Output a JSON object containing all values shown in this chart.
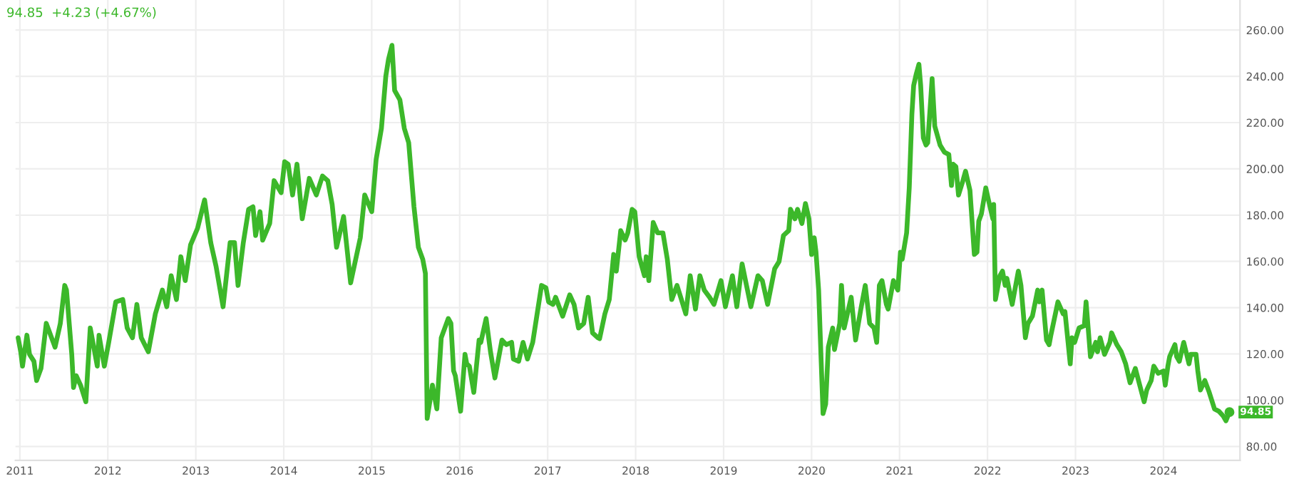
{
  "chart_data": {
    "type": "line",
    "x": [
      2010.98,
      2011.01,
      2011.03,
      2011.08,
      2011.11,
      2011.16,
      2011.19,
      2011.24,
      2011.3,
      2011.38,
      2011.4,
      2011.46,
      2011.51,
      2011.53,
      2011.59,
      2011.61,
      2011.64,
      2011.69,
      2011.75,
      2011.8,
      2011.88,
      2011.9,
      2011.96,
      2012.01,
      2012.09,
      2012.17,
      2012.22,
      2012.28,
      2012.33,
      2012.38,
      2012.46,
      2012.54,
      2012.62,
      2012.67,
      2012.72,
      2012.78,
      2012.83,
      2012.88,
      2012.94,
      2013.02,
      2013.1,
      2013.17,
      2013.23,
      2013.31,
      2013.39,
      2013.44,
      2013.48,
      2013.54,
      2013.6,
      2013.65,
      2013.68,
      2013.73,
      2013.76,
      2013.84,
      2013.89,
      2013.97,
      2014.01,
      2014.05,
      2014.1,
      2014.15,
      2014.21,
      2014.29,
      2014.37,
      2014.44,
      2014.5,
      2014.55,
      2014.6,
      2014.68,
      2014.76,
      2014.87,
      2014.92,
      2015.0,
      2015.05,
      2015.11,
      2015.16,
      2015.19,
      2015.23,
      2015.26,
      2015.32,
      2015.37,
      2015.42,
      2015.48,
      2015.53,
      2015.58,
      2015.61,
      2015.63,
      2015.69,
      2015.74,
      2015.79,
      2015.87,
      2015.9,
      2015.93,
      2015.95,
      2016.01,
      2016.06,
      2016.08,
      2016.11,
      2016.16,
      2016.22,
      2016.24,
      2016.3,
      2016.35,
      2016.4,
      2016.48,
      2016.53,
      2016.59,
      2016.61,
      2016.67,
      2016.72,
      2016.77,
      2016.83,
      2016.88,
      2016.93,
      2016.98,
      2017.01,
      2017.06,
      2017.09,
      2017.17,
      2017.25,
      2017.3,
      2017.35,
      2017.41,
      2017.46,
      2017.51,
      2017.57,
      2017.59,
      2017.65,
      2017.7,
      2017.75,
      2017.78,
      2017.83,
      2017.88,
      2017.91,
      2017.96,
      2017.99,
      2018.04,
      2018.1,
      2018.12,
      2018.15,
      2018.2,
      2018.25,
      2018.31,
      2018.36,
      2018.41,
      2018.47,
      2018.52,
      2018.57,
      2018.62,
      2018.68,
      2018.73,
      2018.78,
      2018.84,
      2018.89,
      2018.97,
      2019.02,
      2019.1,
      2019.15,
      2019.21,
      2019.26,
      2019.31,
      2019.39,
      2019.44,
      2019.5,
      2019.58,
      2019.63,
      2019.68,
      2019.74,
      2019.76,
      2019.81,
      2019.84,
      2019.89,
      2019.93,
      2019.97,
      2020.0,
      2020.03,
      2020.05,
      2020.08,
      2020.13,
      2020.16,
      2020.19,
      2020.24,
      2020.26,
      2020.32,
      2020.34,
      2020.37,
      2020.45,
      2020.5,
      2020.56,
      2020.61,
      2020.66,
      2020.71,
      2020.74,
      2020.77,
      2020.8,
      2020.85,
      2020.87,
      2020.93,
      2020.98,
      2021.01,
      2021.03,
      2021.08,
      2021.11,
      2021.14,
      2021.16,
      2021.19,
      2021.22,
      2021.24,
      2021.27,
      2021.3,
      2021.32,
      2021.35,
      2021.37,
      2021.4,
      2021.46,
      2021.51,
      2021.56,
      2021.59,
      2021.61,
      2021.64,
      2021.67,
      2021.72,
      2021.75,
      2021.8,
      2021.85,
      2021.88,
      2021.9,
      2021.93,
      2021.98,
      2022.01,
      2022.06,
      2022.07,
      2022.09,
      2022.14,
      2022.17,
      2022.2,
      2022.22,
      2022.28,
      2022.3,
      2022.35,
      2022.38,
      2022.43,
      2022.46,
      2022.51,
      2022.57,
      2022.59,
      2022.62,
      2022.67,
      2022.7,
      2022.72,
      2022.8,
      2022.86,
      2022.88,
      2022.94,
      2022.96,
      2022.99,
      2023.04,
      2023.1,
      2023.12,
      2023.17,
      2023.23,
      2023.25,
      2023.28,
      2023.33,
      2023.39,
      2023.41,
      2023.47,
      2023.52,
      2023.57,
      2023.62,
      2023.68,
      2023.73,
      2023.78,
      2023.81,
      2023.86,
      2023.89,
      2023.94,
      2024.0,
      2024.02,
      2024.05,
      2024.07,
      2024.13,
      2024.15,
      2024.18,
      2024.23,
      2024.29,
      2024.31,
      2024.37,
      2024.39,
      2024.42,
      2024.47,
      2024.52,
      2024.58,
      2024.63,
      2024.68,
      2024.71,
      2024.75
    ],
    "series": [
      {
        "color": "#3cb82a",
        "values": [
          127.0,
          120.9,
          114.7,
          128.1,
          119.8,
          116.8,
          108.5,
          113.7,
          133.2,
          125.0,
          122.9,
          133.2,
          149.6,
          147.6,
          119.8,
          105.5,
          110.6,
          106.5,
          99.3,
          131.2,
          114.7,
          128.1,
          114.7,
          125.0,
          142.5,
          143.5,
          131.2,
          127.0,
          141.4,
          127.0,
          120.9,
          137.3,
          147.6,
          140.4,
          153.8,
          143.5,
          162.0,
          151.7,
          167.1,
          174.3,
          186.6,
          168.1,
          157.9,
          140.4,
          168.1,
          168.1,
          149.6,
          168.1,
          182.5,
          183.6,
          171.2,
          181.5,
          169.2,
          176.4,
          194.9,
          189.7,
          203.1,
          202.0,
          188.7,
          202.0,
          178.4,
          195.9,
          188.7,
          196.9,
          194.9,
          184.6,
          166.1,
          179.4,
          150.7,
          170.2,
          188.7,
          181.5,
          204.1,
          217.5,
          240.1,
          247.3,
          253.4,
          233.9,
          229.8,
          217.5,
          211.3,
          183.6,
          166.1,
          160.9,
          154.8,
          92.1,
          106.5,
          96.2,
          127.0,
          135.3,
          133.2,
          112.7,
          110.6,
          95.2,
          119.8,
          115.7,
          114.7,
          103.4,
          126.0,
          125.0,
          135.3,
          120.9,
          109.6,
          126.0,
          124.0,
          125.0,
          117.8,
          116.8,
          125.0,
          117.8,
          125.0,
          137.3,
          149.6,
          148.6,
          142.5,
          141.4,
          144.5,
          136.3,
          145.5,
          141.4,
          131.2,
          133.2,
          144.5,
          129.1,
          127.0,
          126.6,
          137.3,
          143.5,
          163.0,
          155.8,
          173.3,
          169.2,
          172.3,
          182.5,
          181.5,
          162.0,
          153.8,
          162.0,
          151.7,
          176.8,
          172.3,
          172.3,
          160.9,
          143.5,
          149.6,
          143.5,
          137.3,
          153.8,
          139.4,
          153.8,
          147.6,
          144.5,
          141.4,
          151.7,
          140.4,
          153.8,
          140.4,
          158.9,
          149.6,
          140.4,
          153.8,
          151.7,
          141.4,
          156.8,
          159.9,
          171.2,
          173.3,
          182.5,
          178.4,
          182.5,
          176.4,
          185.0,
          178.4,
          163.0,
          170.2,
          164.0,
          147.6,
          94.2,
          98.3,
          122.9,
          131.2,
          121.9,
          133.2,
          149.6,
          131.2,
          144.5,
          126.0,
          139.4,
          149.6,
          133.2,
          131.2,
          125.0,
          149.6,
          151.7,
          141.4,
          139.4,
          151.7,
          147.6,
          164.0,
          160.9,
          172.3,
          191.8,
          223.6,
          236.0,
          241.1,
          245.2,
          236.0,
          213.4,
          210.3,
          211.3,
          227.7,
          239.0,
          218.5,
          210.3,
          207.2,
          206.2,
          192.8,
          202.0,
          201.0,
          188.7,
          194.9,
          199.0,
          190.7,
          163.0,
          164.0,
          177.4,
          180.5,
          191.8,
          186.6,
          178.4,
          184.6,
          143.5,
          153.8,
          155.8,
          149.6,
          152.7,
          141.4,
          145.5,
          155.8,
          149.6,
          127.0,
          133.2,
          136.3,
          147.6,
          142.5,
          147.6,
          126.0,
          124.0,
          128.1,
          142.5,
          137.3,
          138.3,
          115.7,
          127.0,
          125.0,
          131.2,
          132.2,
          142.5,
          118.8,
          125.0,
          120.9,
          127.0,
          119.8,
          125.0,
          129.1,
          124.0,
          120.9,
          115.7,
          107.5,
          113.7,
          106.5,
          99.3,
          104.4,
          108.5,
          114.7,
          111.6,
          112.6,
          106.5,
          114.7,
          118.8,
          124.0,
          118.8,
          116.8,
          125.0,
          115.7,
          119.8,
          119.8,
          112.7,
          104.4,
          108.5,
          103.4,
          96.2,
          95.2,
          93.1,
          91.1,
          94.85
        ]
      }
    ],
    "xlim": [
      2010.95,
      2024.87
    ],
    "xticks": [
      2011,
      2012,
      2013,
      2014,
      2015,
      2016,
      2017,
      2018,
      2019,
      2020,
      2021,
      2022,
      2023,
      2024
    ],
    "ylim": [
      74,
      273
    ],
    "yticks": [
      {
        "value": 80,
        "label": "80.00"
      },
      {
        "value": 100,
        "label": "100.00"
      },
      {
        "value": 120,
        "label": "120.00"
      },
      {
        "value": 140,
        "label": "140.00"
      },
      {
        "value": 160,
        "label": "160.00"
      },
      {
        "value": 180,
        "label": "180.00"
      },
      {
        "value": 200,
        "label": "200.00"
      },
      {
        "value": 220,
        "label": "220.00"
      },
      {
        "value": 240,
        "label": "240.00"
      },
      {
        "value": 260,
        "label": "260.00"
      }
    ],
    "grid": true,
    "line_style": "solid",
    "annotations": [
      "94.85  +4.23 (+4.67%)",
      {
        "text": "94.85",
        "x": 2024.75,
        "y": 94.85
      }
    ]
  }
}
